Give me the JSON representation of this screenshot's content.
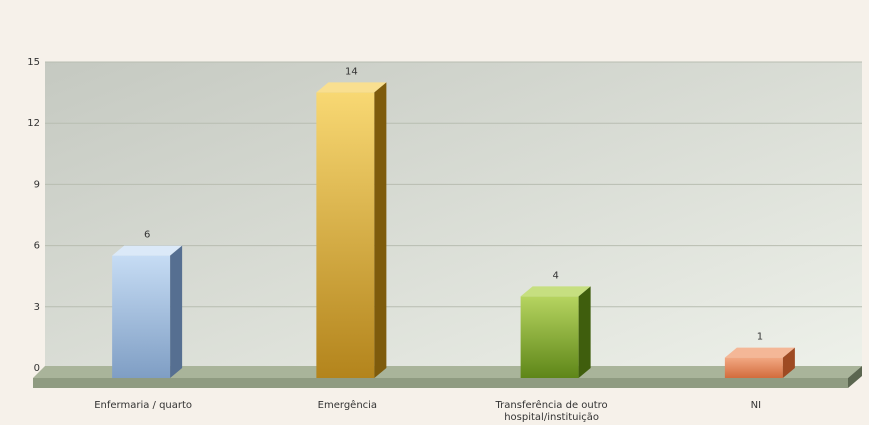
{
  "chart_data": {
    "type": "bar",
    "categories": [
      "Enfermaria / quarto",
      "Emergência",
      "Transferência de outro hospital/instituição",
      "NI"
    ],
    "category_lines": [
      [
        "Enfermaria / quarto"
      ],
      [
        "Emergência"
      ],
      [
        "Transferência de outro",
        "hospital/instituição"
      ],
      [
        "NI"
      ]
    ],
    "values": [
      6,
      14,
      4,
      1
    ],
    "data_labels": [
      "6",
      "14",
      "4",
      "1"
    ],
    "yticks": [
      0,
      3,
      6,
      9,
      12,
      15
    ],
    "ylim": [
      0,
      15
    ],
    "title": "",
    "xlabel": "",
    "ylabel": "",
    "grid": true,
    "style": "3d-column",
    "bar_colors": [
      {
        "front_light": "#c6dcf4",
        "front_dark": "#7f9ec4",
        "side": "#566f91",
        "top": "#dbe9f8"
      },
      {
        "front_light": "#f8d873",
        "front_dark": "#b3841c",
        "side": "#7e5b0c",
        "top": "#f9df90"
      },
      {
        "front_light": "#b6d460",
        "front_dark": "#5e8618",
        "side": "#3f5e0d",
        "top": "#c6df80"
      },
      {
        "front_light": "#f2a883",
        "front_dark": "#d26c3d",
        "side": "#9e4a23",
        "top": "#f4b797"
      }
    ],
    "plot_colors": {
      "background_left": "#c5c9c1",
      "background_right": "#eef1ea",
      "grid": "#b8bdb1",
      "floor": "#a9b49a",
      "floor_side": "#5b6650"
    }
  }
}
